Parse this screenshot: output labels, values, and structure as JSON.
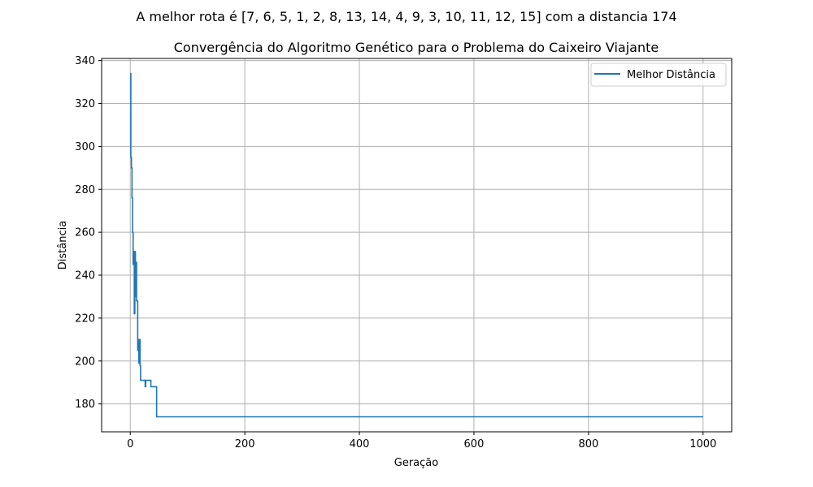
{
  "suptitle": "A melhor rota é [7, 6, 5, 1, 2, 8, 13, 14, 4, 9, 3, 10, 11, 12, 15] com a distancia 174",
  "chart_data": {
    "type": "line",
    "title": "Convergência do Algoritmo Genético para o Problema do Caixeiro Viajante",
    "xlabel": "Geração",
    "ylabel": "Distância",
    "xlim": [
      -50,
      1050
    ],
    "ylim": [
      167,
      341
    ],
    "xticks": [
      0,
      200,
      400,
      600,
      800,
      1000
    ],
    "yticks": [
      180,
      200,
      220,
      240,
      260,
      280,
      300,
      320,
      340
    ],
    "grid": true,
    "legend_position": "upper right",
    "series": [
      {
        "name": "Melhor Distância",
        "color": "#1f77b4",
        "points": [
          [
            0,
            334
          ],
          [
            1,
            295
          ],
          [
            2,
            290
          ],
          [
            3,
            276
          ],
          [
            4,
            260
          ],
          [
            5,
            245
          ],
          [
            6,
            251
          ],
          [
            7,
            222
          ],
          [
            8,
            251
          ],
          [
            9,
            230
          ],
          [
            10,
            246
          ],
          [
            11,
            228
          ],
          [
            12,
            228
          ],
          [
            13,
            205
          ],
          [
            14,
            210
          ],
          [
            15,
            199
          ],
          [
            16,
            210
          ],
          [
            17,
            198
          ],
          [
            18,
            191
          ],
          [
            19,
            191
          ],
          [
            20,
            191
          ],
          [
            25,
            191
          ],
          [
            26,
            188
          ],
          [
            27,
            191
          ],
          [
            30,
            191
          ],
          [
            35,
            191
          ],
          [
            36,
            188
          ],
          [
            40,
            188
          ],
          [
            45,
            188
          ],
          [
            46,
            174
          ],
          [
            100,
            174
          ],
          [
            200,
            174
          ],
          [
            400,
            174
          ],
          [
            600,
            174
          ],
          [
            800,
            174
          ],
          [
            1000,
            174
          ]
        ]
      }
    ]
  }
}
